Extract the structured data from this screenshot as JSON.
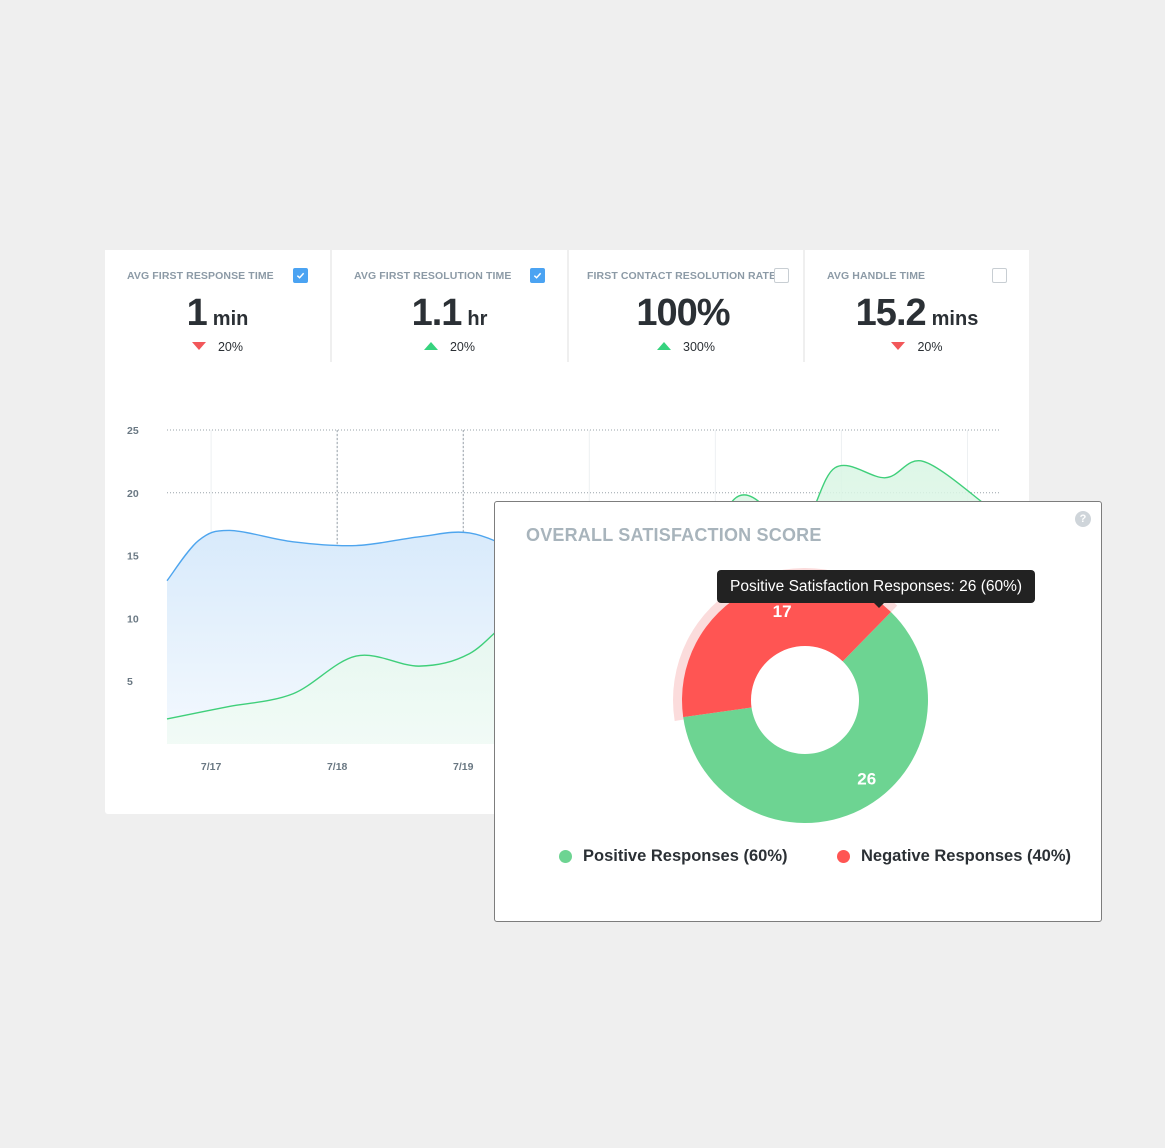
{
  "kpis": [
    {
      "label": "AVG FIRST RESPONSE TIME",
      "checked": true,
      "value": "1",
      "unit": "min",
      "trend": "down",
      "change": "20%"
    },
    {
      "label": "AVG FIRST RESOLUTION TIME",
      "checked": true,
      "value": "1.1",
      "unit": "hr",
      "trend": "up",
      "change": "20%"
    },
    {
      "label": "FIRST CONTACT RESOLUTION RATE",
      "checked": false,
      "value": "100%",
      "unit": "",
      "trend": "up",
      "change": "300%"
    },
    {
      "label": "AVG HANDLE TIME",
      "checked": false,
      "value": "15.2",
      "unit": "mins",
      "trend": "down",
      "change": "20%"
    }
  ],
  "colors": {
    "positive": "#6dd492",
    "negative": "#ff5553",
    "line_blue": "#4ea5ee",
    "line_green": "#3fcf7a",
    "trend_up": "#36d37e",
    "trend_down": "#f2575a",
    "checkbox": "#4ba3f2"
  },
  "chart_data": [
    {
      "type": "area",
      "title": "",
      "xlabel": "",
      "ylabel": "",
      "y_ticks": [
        "25",
        "20",
        "15",
        "10",
        "5"
      ],
      "x_ticks": [
        "7/17",
        "7/18",
        "7/19"
      ],
      "ylim": [
        0,
        25
      ],
      "x": [
        0,
        0.25,
        0.5,
        1.0,
        1.5,
        2.0,
        2.4,
        2.8,
        3.1,
        3.5,
        4.0,
        4.5,
        5.0,
        5.3,
        5.7,
        6.0,
        6.5
      ],
      "series": [
        {
          "values": [
            13,
            16.2,
            17,
            16.1,
            15.8,
            16.5,
            16.8,
            15.2,
            13.1,
            13.7,
            15.2,
            null,
            null,
            null,
            null,
            null,
            null
          ]
        },
        {
          "values": [
            2,
            2.5,
            3,
            4,
            7,
            6.2,
            7.2,
            10.4,
            9.5,
            8.2,
            7.5,
            19.5,
            17,
            22,
            21.2,
            22.5,
            19
          ]
        }
      ],
      "grid": true
    },
    {
      "type": "pie",
      "title": "OVERALL SATISFACTION SCORE",
      "categories": [
        "Positive Responses (60%)",
        "Negative Responses (40%)"
      ],
      "values": [
        26,
        17
      ],
      "slice_labels": [
        "26",
        "17"
      ],
      "hole": true
    }
  ],
  "tooltip": "Positive Satisfaction Responses: 26 (60%)",
  "help_icon": "question-icon",
  "help_symbol": "?"
}
